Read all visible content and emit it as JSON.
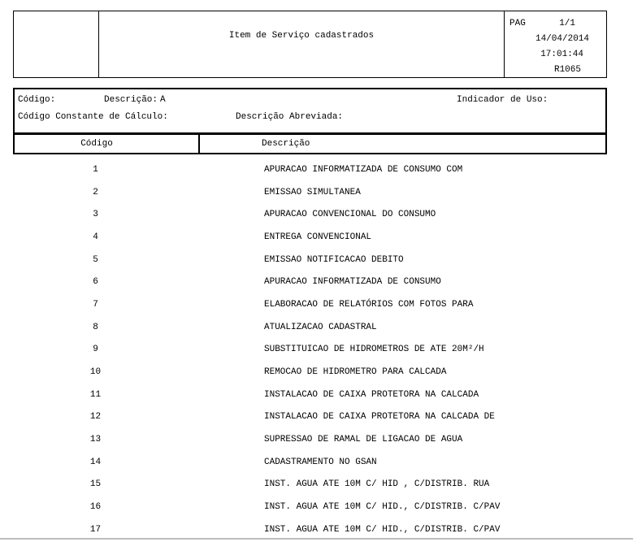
{
  "report": {
    "title": "Item de Serviço cadastrados",
    "page_label": "PAG",
    "page_value": "1/1",
    "date": "14/04/2014",
    "time": "17:01:44",
    "report_code": "R1065"
  },
  "filters": {
    "codigo_label": "Código:",
    "descricao_label": "Descrição:",
    "descricao_value": "A",
    "indicador_de_uso_label": "Indicador de Uso:",
    "codigo_constante_calculo_label": "Código Constante de Cálculo:",
    "descricao_abreviada_label": "Descrição Abreviada:"
  },
  "table": {
    "columns": [
      "Código",
      "Descrição"
    ],
    "rows": [
      {
        "codigo": "1",
        "descricao": "APURACAO INFORMATIZADA DE CONSUMO COM"
      },
      {
        "codigo": "2",
        "descricao": "EMISSAO SIMULTANEA"
      },
      {
        "codigo": "3",
        "descricao": "APURACAO CONVENCIONAL DO CONSUMO"
      },
      {
        "codigo": "4",
        "descricao": "ENTREGA CONVENCIONAL"
      },
      {
        "codigo": "5",
        "descricao": "EMISSAO NOTIFICACAO DEBITO"
      },
      {
        "codigo": "6",
        "descricao": "APURACAO INFORMATIZADA DE CONSUMO"
      },
      {
        "codigo": "7",
        "descricao": "ELABORACAO DE RELATÓRIOS COM FOTOS PARA"
      },
      {
        "codigo": "8",
        "descricao": "ATUALIZACAO CADASTRAL"
      },
      {
        "codigo": "9",
        "descricao": "SUBSTITUICAO DE HIDROMETROS DE ATE 20M²/H"
      },
      {
        "codigo": "10",
        "descricao": "REMOCAO DE HIDROMETRO PARA CALCADA"
      },
      {
        "codigo": "11",
        "descricao": "INSTALACAO DE CAIXA PROTETORA NA CALCADA"
      },
      {
        "codigo": "12",
        "descricao": "INSTALACAO DE CAIXA PROTETORA NA CALCADA DE"
      },
      {
        "codigo": "13",
        "descricao": "SUPRESSAO DE RAMAL DE LIGACAO DE AGUA"
      },
      {
        "codigo": "14",
        "descricao": "CADASTRAMENTO NO GSAN"
      },
      {
        "codigo": "15",
        "descricao": "INST. AGUA ATE 10M C/ HID , C/DISTRIB. RUA"
      },
      {
        "codigo": "16",
        "descricao": "INST. AGUA ATE 10M C/ HID., C/DISTRIB. C/PAV"
      },
      {
        "codigo": "17",
        "descricao": "INST. AGUA ATE 10M C/ HID., C/DISTRIB. C/PAV"
      }
    ]
  },
  "colors": {
    "background": "#ffffff",
    "text": "#000000",
    "border": "#000000",
    "bottom_divider": "#bdbdbd"
  }
}
